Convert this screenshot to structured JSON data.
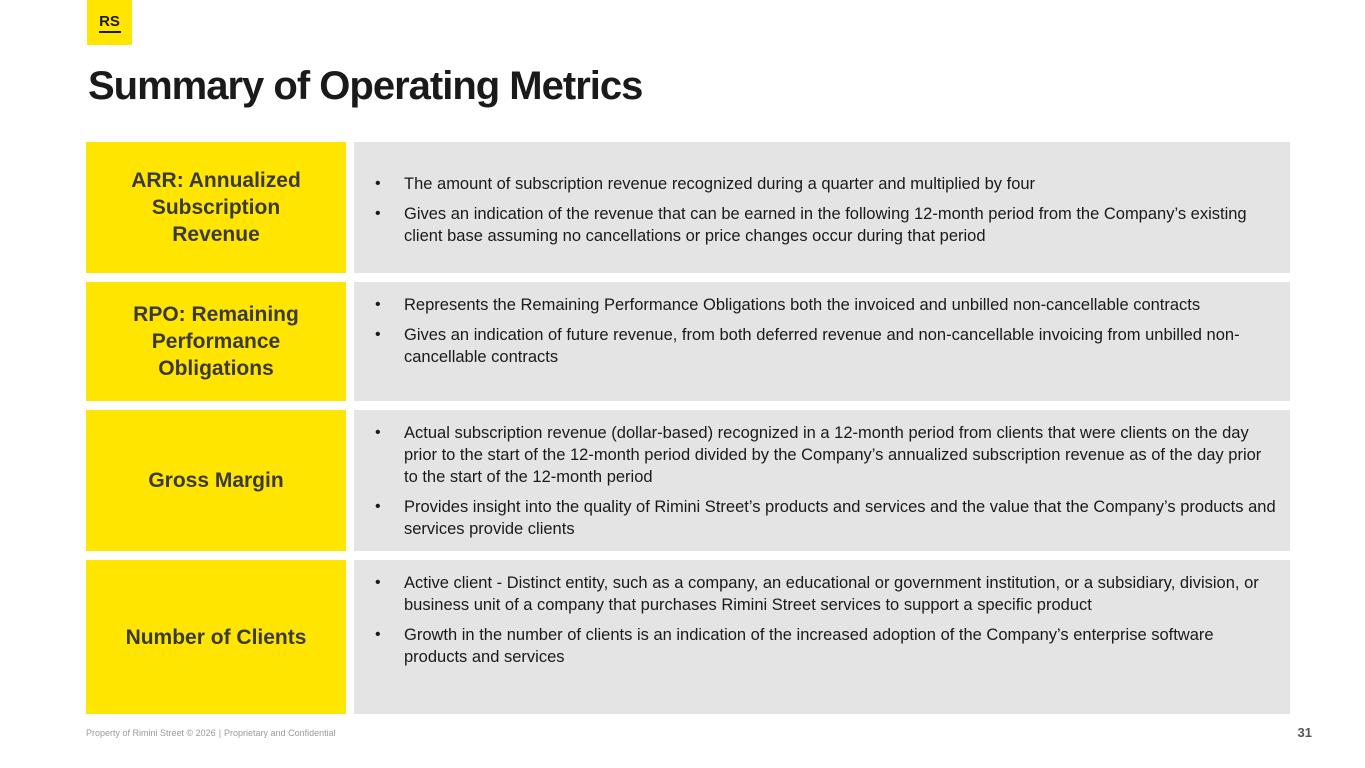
{
  "logo": {
    "text": "RS"
  },
  "title": "Summary of Operating Metrics",
  "metrics": [
    {
      "label": "ARR: Annualized Subscription Revenue",
      "bullets": [
        "The amount of subscription revenue recognized during a quarter and multiplied by four",
        "Gives an indication of the revenue that can be earned in the following 12-month period from the Company’s existing client base assuming no cancellations or price changes occur during that period"
      ]
    },
    {
      "label": "RPO: Remaining Performance Obligations",
      "bullets": [
        "Represents the Remaining Performance Obligations both the invoiced and unbilled non-cancellable contracts",
        "Gives an indication of future revenue, from both deferred revenue and non-cancellable invoicing from unbilled non-cancellable contracts"
      ]
    },
    {
      "label": "Gross Margin",
      "bullets": [
        "Actual subscription revenue (dollar-based) recognized in a 12-month period from clients that were clients on the day prior to the start of the 12-month period divided by the Company’s annualized subscription revenue as of the day prior to the start of the 12-month period",
        "Provides insight into the quality of Rimini Street’s products and services and the value that the Company’s products and services provide clients"
      ]
    },
    {
      "label": "Number of Clients",
      "bullets": [
        "Active client - Distinct entity, such as a company, an educational or government institution, or a subsidiary, division, or business unit of a company that purchases Rimini Street services to support a specific product",
        "Growth in the number of clients is an indication of the increased adoption of the Company’s enterprise software products and services"
      ]
    }
  ],
  "footer": {
    "property": "Property of Rimini Street © 2026",
    "separator": "|",
    "confidential": "Proprietary and Confidential",
    "page_number": "31"
  },
  "colors": {
    "brand_yellow": "#FFE500",
    "panel_gray": "#E4E4E4",
    "text_dark": "#1a1a1a"
  }
}
